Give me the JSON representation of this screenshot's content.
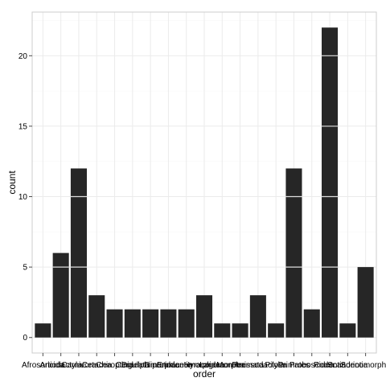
{
  "chart_data": {
    "type": "bar",
    "xlabel": "order",
    "ylabel": "count",
    "categories": [
      "Afrosoricida",
      "Artiodactyla",
      "Carnivora",
      "Cetacea",
      "Chiroptera",
      "Cingulata",
      "Didelphimorphia",
      "Diprotodontia",
      "Erinaceomorpha",
      "Hyracoidea",
      "Lagomorpha",
      "Monotremata",
      "Perissodactyla",
      "Pilosa",
      "Primates",
      "Proboscidea",
      "Rodentia",
      "Scandentia",
      "Soricomorpha"
    ],
    "values": [
      1,
      6,
      12,
      3,
      2,
      2,
      2,
      2,
      2,
      3,
      1,
      1,
      3,
      1,
      12,
      2,
      22,
      1,
      5
    ],
    "yticks": [
      0,
      5,
      10,
      15,
      20
    ],
    "ylim": [
      -1.1,
      23.1
    ],
    "grid": true,
    "colors": {
      "panel_background": "#ffffff",
      "panel_border": "#cccccc",
      "grid_major": "#ebebeb",
      "grid_minor": "#f5f5f5",
      "bar_fill": "#262626",
      "bar_stack_outline": "#ffffff"
    }
  }
}
